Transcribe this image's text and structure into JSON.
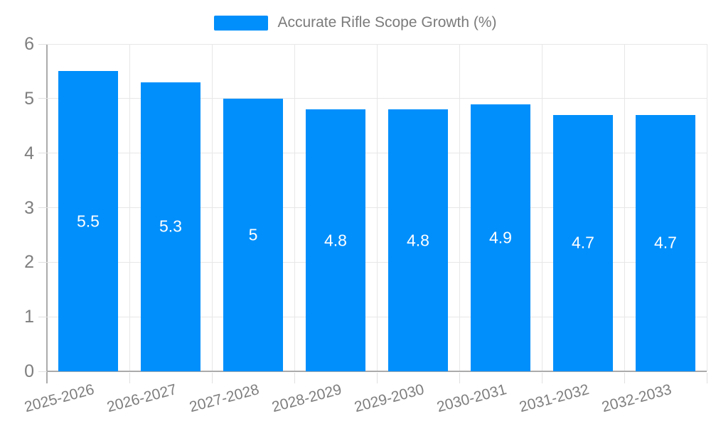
{
  "legend": {
    "label": "Accurate Rifle Scope Growth (%)"
  },
  "chart_data": {
    "type": "bar",
    "title": "Accurate Rifle Scope Growth (%)",
    "categories": [
      "2025-2026",
      "2026-2027",
      "2027-2028",
      "2028-2029",
      "2029-2030",
      "2030-2031",
      "2031-2032",
      "2032-2033"
    ],
    "values": [
      5.5,
      5.3,
      5,
      4.8,
      4.8,
      4.9,
      4.7,
      4.7
    ],
    "xlabel": "",
    "ylabel": "",
    "ylim": [
      0,
      6
    ],
    "ytick_step": 1,
    "grid": true,
    "legend_position": "top",
    "bar_color": "#008FFB",
    "bar_label_color": "#ffffff",
    "axis_label_color": "#7e7e7e",
    "gridline_color": "#e7e7e7",
    "axis_line_color": "#ababab"
  }
}
